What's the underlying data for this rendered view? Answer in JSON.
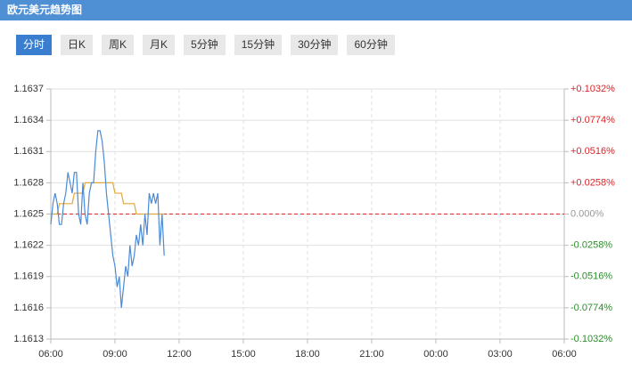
{
  "header": {
    "title": "欧元美元趋势图"
  },
  "tabs": [
    "分时",
    "日K",
    "周K",
    "月K",
    "5分钟",
    "15分钟",
    "30分钟",
    "60分钟"
  ],
  "active_tab": 0,
  "chart_data": {
    "type": "line",
    "x": [
      0,
      0.1,
      0.2,
      0.3,
      0.4,
      0.5,
      0.6,
      0.7,
      0.8,
      0.9,
      1.0,
      1.1,
      1.2,
      1.3,
      1.4,
      1.5,
      1.6,
      1.7,
      1.8,
      1.9,
      2.0,
      2.1,
      2.2,
      2.3,
      2.4,
      2.5,
      2.6,
      2.7,
      2.8,
      2.9,
      3.0,
      3.1,
      3.2,
      3.3,
      3.4,
      3.5,
      3.6,
      3.7,
      3.8,
      3.9,
      4.0,
      4.1,
      4.2,
      4.3,
      4.4,
      4.5,
      4.6,
      4.7,
      4.8,
      4.9,
      5.0,
      5.1,
      5.2,
      5.3
    ],
    "series": [
      {
        "color": "#4a8ad6",
        "values": [
          1.1624,
          1.1626,
          1.1627,
          1.1626,
          1.1624,
          1.1624,
          1.1626,
          1.1627,
          1.1629,
          1.1628,
          1.1627,
          1.1629,
          1.1629,
          1.1625,
          1.1624,
          1.1628,
          1.1625,
          1.1624,
          1.1627,
          1.1628,
          1.1628,
          1.1631,
          1.1633,
          1.1633,
          1.1632,
          1.163,
          1.1627,
          1.1625,
          1.1623,
          1.1621,
          1.162,
          1.1618,
          1.1619,
          1.1616,
          1.1618,
          1.162,
          1.1619,
          1.1622,
          1.162,
          1.1621,
          1.1623,
          1.1622,
          1.1624,
          1.1622,
          1.1625,
          1.1623,
          1.1627,
          1.1626,
          1.1627,
          1.1626,
          1.1627,
          1.1622,
          1.1625,
          1.1621
        ]
      },
      {
        "color": "#e0a83a",
        "values": [
          1.1625,
          1.1625,
          1.1625,
          1.1625,
          1.1626,
          1.1626,
          1.1626,
          1.1626,
          1.1626,
          1.1626,
          1.1626,
          1.1627,
          1.1627,
          1.1627,
          1.1627,
          1.1627,
          1.1628,
          1.1628,
          1.1628,
          1.1628,
          1.1628,
          1.1628,
          1.1628,
          1.1628,
          1.1628,
          1.1628,
          1.1628,
          1.1628,
          1.1628,
          1.1628,
          1.1627,
          1.1627,
          1.1627,
          1.1627,
          1.1626,
          1.1626,
          1.1626,
          1.1626,
          1.1626,
          1.1626,
          1.1625,
          1.1625,
          1.1625,
          1.1625,
          1.1625,
          1.1625,
          1.1625,
          1.1625,
          1.1625,
          1.1625,
          1.1625,
          1.1625,
          1.1625,
          1.1625
        ]
      }
    ],
    "xlim": [
      0,
      24
    ],
    "xticks": [
      {
        "value": 0,
        "label": "06:00"
      },
      {
        "value": 3,
        "label": "09:00"
      },
      {
        "value": 6,
        "label": "12:00"
      },
      {
        "value": 9,
        "label": "15:00"
      },
      {
        "value": 12,
        "label": "18:00"
      },
      {
        "value": 15,
        "label": "21:00"
      },
      {
        "value": 18,
        "label": "00:00"
      },
      {
        "value": 21,
        "label": "03:00"
      },
      {
        "value": 24,
        "label": "06:00"
      }
    ],
    "ylim": [
      1.1613,
      1.1637
    ],
    "yticks": [
      1.1637,
      1.1634,
      1.1631,
      1.1628,
      1.1625,
      1.1622,
      1.1619,
      1.1616,
      1.1613
    ],
    "y2lim": [
      -0.1032,
      0.1032
    ],
    "y2ticks": [
      {
        "value": 0.1032,
        "label": "+0.1032%"
      },
      {
        "value": 0.0774,
        "label": "+0.0774%"
      },
      {
        "value": 0.0516,
        "label": "+0.0516%"
      },
      {
        "value": 0.0258,
        "label": "+0.0258%"
      },
      {
        "value": 0,
        "label": "0.000%"
      },
      {
        "value": -0.0258,
        "label": "-0.0258%"
      },
      {
        "value": -0.0516,
        "label": "-0.0516%"
      },
      {
        "value": -0.0774,
        "label": "-0.0774%"
      },
      {
        "value": -0.1032,
        "label": "-0.1032%"
      }
    ],
    "y2_colors": {
      "up": "#d9262b",
      "down": "#2e8b2e",
      "flat": "#999999"
    },
    "ref_line": {
      "value": 1.1625,
      "color": "#d9262b"
    },
    "grid": true
  }
}
